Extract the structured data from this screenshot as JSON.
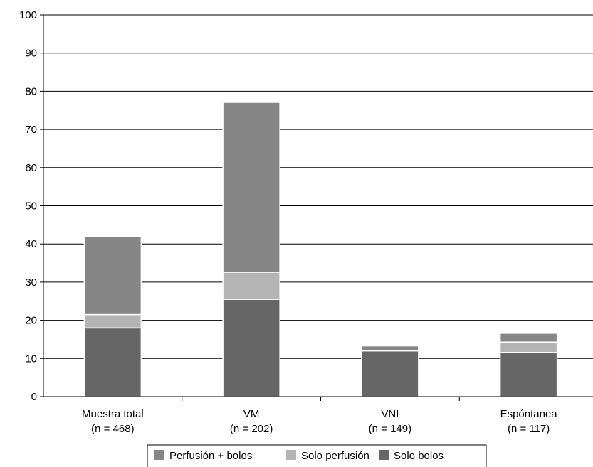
{
  "chart_data": {
    "type": "bar",
    "stacked": true,
    "categories": [
      [
        "Muestra total",
        "(n = 468)"
      ],
      [
        "VM",
        "(n = 202)"
      ],
      [
        "VNI",
        "(n = 149)"
      ],
      [
        "Espóntanea",
        "(n = 117)"
      ]
    ],
    "series": [
      {
        "name": "Solo bolos",
        "color": "#666666",
        "values": [
          18,
          25.5,
          12,
          11.6
        ]
      },
      {
        "name": "Solo perfusión",
        "color": "#b4b4b4",
        "values": [
          3.5,
          7.1,
          0,
          2.7
        ]
      },
      {
        "name": "Perfusión + bolos",
        "color": "#868686",
        "values": [
          20.5,
          44.5,
          1.3,
          2.3
        ]
      }
    ],
    "legend_order": [
      "Perfusión + bolos",
      "Solo perfusión",
      "Solo bolos"
    ],
    "legend_position": "bottom",
    "ylim": [
      0,
      100
    ],
    "yticks": [
      0,
      10,
      20,
      30,
      40,
      50,
      60,
      70,
      80,
      90,
      100
    ],
    "grid": true,
    "title": "",
    "xlabel": "",
    "ylabel": ""
  }
}
